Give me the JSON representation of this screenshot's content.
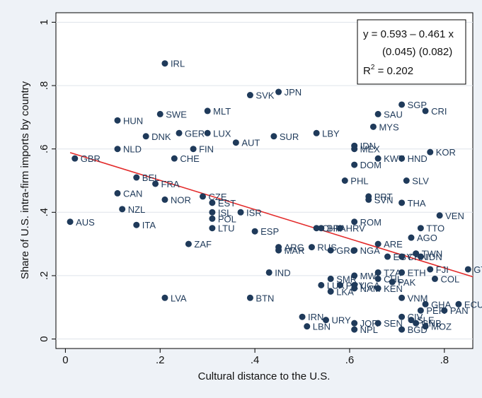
{
  "chart_data": {
    "type": "scatter",
    "title": "",
    "xlabel": "Cultural distance to the U.S.",
    "ylabel": "Share of U.S. intra-firm imports by country",
    "xlim": [
      -0.02,
      0.86
    ],
    "ylim": [
      -0.03,
      1.03
    ],
    "xticks": [
      0,
      0.2,
      0.4,
      0.6,
      0.8
    ],
    "xtick_labels": [
      "0",
      ".2",
      ".4",
      ".6",
      ".8"
    ],
    "yticks": [
      0,
      0.2,
      0.4,
      0.6,
      0.8,
      1
    ],
    "ytick_labels": [
      "0",
      ".2",
      ".4",
      ".6",
      ".8",
      "1"
    ],
    "grid": true,
    "fit_line": {
      "intercept": 0.593,
      "slope": -0.461,
      "color": "#e32b2b"
    },
    "equation": {
      "line1": "y  = 0.593 –  0.461 x",
      "line2": "(0.045)   (0.082)",
      "r2_label": "R",
      "r2_sup": "2",
      "r2_value": " = 0.202"
    },
    "point_color": "#1f3a5a",
    "points": [
      {
        "label": "IRL",
        "x": 0.21,
        "y": 0.87
      },
      {
        "label": "SVK",
        "x": 0.39,
        "y": 0.77
      },
      {
        "label": "JPN",
        "x": 0.45,
        "y": 0.78
      },
      {
        "label": "MLT",
        "x": 0.3,
        "y": 0.72
      },
      {
        "label": "HUN",
        "x": 0.11,
        "y": 0.69
      },
      {
        "label": "SWE",
        "x": 0.2,
        "y": 0.71
      },
      {
        "label": "DNK",
        "x": 0.17,
        "y": 0.64
      },
      {
        "label": "GER",
        "x": 0.24,
        "y": 0.65
      },
      {
        "label": "LUX",
        "x": 0.3,
        "y": 0.65
      },
      {
        "label": "SUR",
        "x": 0.44,
        "y": 0.64
      },
      {
        "label": "LBY",
        "x": 0.53,
        "y": 0.65
      },
      {
        "label": "AUT",
        "x": 0.36,
        "y": 0.62
      },
      {
        "label": "FIN",
        "x": 0.27,
        "y": 0.6
      },
      {
        "label": "NLD",
        "x": 0.11,
        "y": 0.6
      },
      {
        "label": "CHE",
        "x": 0.23,
        "y": 0.57
      },
      {
        "label": "GBR",
        "x": 0.02,
        "y": 0.57
      },
      {
        "label": "BEL",
        "x": 0.15,
        "y": 0.51
      },
      {
        "label": "FRA",
        "x": 0.19,
        "y": 0.49
      },
      {
        "label": "CAN",
        "x": 0.11,
        "y": 0.46
      },
      {
        "label": "NOR",
        "x": 0.21,
        "y": 0.44
      },
      {
        "label": "CZE",
        "x": 0.29,
        "y": 0.45
      },
      {
        "label": "EST",
        "x": 0.31,
        "y": 0.43
      },
      {
        "label": "NZL",
        "x": 0.12,
        "y": 0.41
      },
      {
        "label": "ISL",
        "x": 0.31,
        "y": 0.4
      },
      {
        "label": "ISR",
        "x": 0.37,
        "y": 0.4
      },
      {
        "label": "POL",
        "x": 0.31,
        "y": 0.38
      },
      {
        "label": "AUS",
        "x": 0.01,
        "y": 0.37
      },
      {
        "label": "ITA",
        "x": 0.15,
        "y": 0.36
      },
      {
        "label": "LTU",
        "x": 0.31,
        "y": 0.35
      },
      {
        "label": "ESP",
        "x": 0.4,
        "y": 0.34
      },
      {
        "label": "ZAF",
        "x": 0.26,
        "y": 0.3
      },
      {
        "label": "SGP",
        "x": 0.71,
        "y": 0.74
      },
      {
        "label": "CRI",
        "x": 0.76,
        "y": 0.72
      },
      {
        "label": "SAU",
        "x": 0.66,
        "y": 0.71
      },
      {
        "label": "MYS",
        "x": 0.65,
        "y": 0.67
      },
      {
        "label": "IDN",
        "x": 0.61,
        "y": 0.61
      },
      {
        "label": "MEX",
        "x": 0.61,
        "y": 0.6
      },
      {
        "label": "KOR",
        "x": 0.77,
        "y": 0.59
      },
      {
        "label": "KWT",
        "x": 0.66,
        "y": 0.57
      },
      {
        "label": "HND",
        "x": 0.71,
        "y": 0.57
      },
      {
        "label": "DOM",
        "x": 0.61,
        "y": 0.55
      },
      {
        "label": "PHL",
        "x": 0.59,
        "y": 0.5
      },
      {
        "label": "SLV",
        "x": 0.72,
        "y": 0.5
      },
      {
        "label": "PRT",
        "x": 0.64,
        "y": 0.45
      },
      {
        "label": "SVN",
        "x": 0.64,
        "y": 0.44
      },
      {
        "label": "THA",
        "x": 0.71,
        "y": 0.43
      },
      {
        "label": "VEN",
        "x": 0.79,
        "y": 0.39
      },
      {
        "label": "ROM",
        "x": 0.61,
        "y": 0.37
      },
      {
        "label": "TTO",
        "x": 0.75,
        "y": 0.35
      },
      {
        "label": "HRV",
        "x": 0.58,
        "y": 0.35
      },
      {
        "label": "CHN",
        "x": 0.53,
        "y": 0.35
      },
      {
        "label": "BRA",
        "x": 0.54,
        "y": 0.35
      },
      {
        "label": "AGO",
        "x": 0.73,
        "y": 0.32
      },
      {
        "label": "ARE",
        "x": 0.66,
        "y": 0.3
      },
      {
        "label": "RUS",
        "x": 0.52,
        "y": 0.29
      },
      {
        "label": "MAR",
        "x": 0.45,
        "y": 0.28
      },
      {
        "label": "ARG",
        "x": 0.45,
        "y": 0.29
      },
      {
        "label": "GRC",
        "x": 0.56,
        "y": 0.28
      },
      {
        "label": "NGA",
        "x": 0.61,
        "y": 0.28
      },
      {
        "label": "EGY",
        "x": 0.68,
        "y": 0.26
      },
      {
        "label": "CHN",
        "x": 0.71,
        "y": 0.26
      },
      {
        "label": "TWN",
        "x": 0.74,
        "y": 0.27
      },
      {
        "label": "IDN",
        "x": 0.75,
        "y": 0.26
      },
      {
        "label": "FJI",
        "x": 0.77,
        "y": 0.22
      },
      {
        "label": "GTM",
        "x": 0.85,
        "y": 0.22
      },
      {
        "label": "IND",
        "x": 0.43,
        "y": 0.21
      },
      {
        "label": "TZA",
        "x": 0.66,
        "y": 0.21
      },
      {
        "label": "ETH",
        "x": 0.71,
        "y": 0.21
      },
      {
        "label": "COL",
        "x": 0.78,
        "y": 0.19
      },
      {
        "label": "MWI",
        "x": 0.61,
        "y": 0.2
      },
      {
        "label": "SMR",
        "x": 0.56,
        "y": 0.19
      },
      {
        "label": "CHL",
        "x": 0.66,
        "y": 0.19
      },
      {
        "label": "PAK",
        "x": 0.69,
        "y": 0.18
      },
      {
        "label": "LUX",
        "x": 0.54,
        "y": 0.17
      },
      {
        "label": "PRY",
        "x": 0.58,
        "y": 0.17
      },
      {
        "label": "UGA",
        "x": 0.61,
        "y": 0.17
      },
      {
        "label": "KEN",
        "x": 0.66,
        "y": 0.16
      },
      {
        "label": "LKA",
        "x": 0.56,
        "y": 0.15
      },
      {
        "label": "NAM",
        "x": 0.61,
        "y": 0.16
      },
      {
        "label": "LVA",
        "x": 0.21,
        "y": 0.13
      },
      {
        "label": "BTN",
        "x": 0.39,
        "y": 0.13
      },
      {
        "label": "VNM",
        "x": 0.71,
        "y": 0.13
      },
      {
        "label": "GHA",
        "x": 0.76,
        "y": 0.11
      },
      {
        "label": "ECU",
        "x": 0.83,
        "y": 0.11
      },
      {
        "label": "PER",
        "x": 0.75,
        "y": 0.09
      },
      {
        "label": "PAN",
        "x": 0.8,
        "y": 0.09
      },
      {
        "label": "IRN",
        "x": 0.5,
        "y": 0.07
      },
      {
        "label": "URY",
        "x": 0.55,
        "y": 0.06
      },
      {
        "label": "CIV",
        "x": 0.71,
        "y": 0.07
      },
      {
        "label": "SLE",
        "x": 0.73,
        "y": 0.06
      },
      {
        "label": "SEN",
        "x": 0.66,
        "y": 0.05
      },
      {
        "label": "GNB",
        "x": 0.74,
        "y": 0.05
      },
      {
        "label": "MOZ",
        "x": 0.76,
        "y": 0.04
      },
      {
        "label": "LBN",
        "x": 0.51,
        "y": 0.04
      },
      {
        "label": "JOR",
        "x": 0.61,
        "y": 0.05
      },
      {
        "label": "NPL",
        "x": 0.61,
        "y": 0.03
      },
      {
        "label": "BGD",
        "x": 0.71,
        "y": 0.03
      }
    ]
  }
}
